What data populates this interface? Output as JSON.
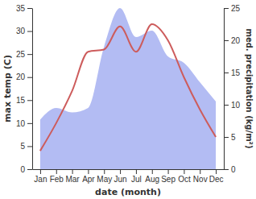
{
  "chart_data": {
    "type": "line",
    "categories": [
      "Jan",
      "Feb",
      "Mar",
      "Apr",
      "May",
      "Jun",
      "Jul",
      "Aug",
      "Sep",
      "Oct",
      "Nov",
      "Dec"
    ],
    "series": [
      {
        "name": "max temp",
        "type": "line",
        "color": "#cd5c5c",
        "values": [
          4,
          10,
          17,
          25.5,
          26,
          31,
          25.5,
          31.5,
          28,
          20,
          13,
          7
        ]
      },
      {
        "name": "med. precipitation",
        "type": "area",
        "axis": "y2",
        "color": "#b3bcf3",
        "values": [
          7.7,
          9.5,
          8.8,
          9.5,
          19,
          25,
          20.5,
          21.5,
          17.5,
          16.5,
          13.5,
          10.5
        ]
      }
    ],
    "x_label": "date (month)",
    "y_label": "max temp (C)",
    "y2_label": "med. precipitation (kg/m²)",
    "ylim": [
      0,
      35
    ],
    "yticks": [
      0,
      5,
      10,
      15,
      20,
      25,
      30,
      35
    ],
    "y2lim": [
      0,
      25
    ],
    "y2ticks": [
      0,
      5,
      10,
      15,
      20,
      25
    ],
    "grid": false
  }
}
